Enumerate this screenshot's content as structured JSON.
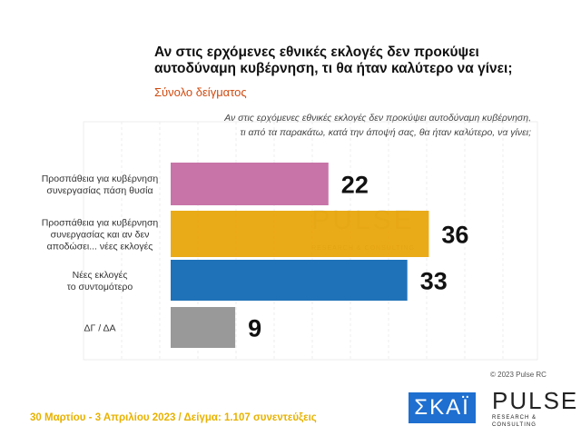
{
  "header": {
    "title_line1": "Αν στις ερχόμενες εθνικές εκλογές δεν προκύψει",
    "title_line2": "αυτοδύναμη κυβέρνηση, τι θα ήταν καλύτερο να γίνει;",
    "subtitle": "Σύνολο δείγματος"
  },
  "chart_data": {
    "type": "bar",
    "orientation": "horizontal",
    "question_line1": "Αν στις ερχόμενες εθνικές εκλογές δεν προκύψει αυτοδύναμη κυβέρνηση,",
    "question_line2": "τι από τα παρακάτω, κατά την άποψή σας, θα ήταν καλύτερο, να γίνει;",
    "categories": [
      [
        "Προσπάθεια για κυβέρνηση",
        "συνεργασίας πάση θυσία"
      ],
      [
        "Προσπάθεια για κυβέρνηση",
        "συνεργασίας και αν δεν",
        "αποδώσει... νέες εκλογές"
      ],
      [
        "Νέες εκλογές",
        "το συντομότερο"
      ],
      [
        "ΔΓ / ΔΑ"
      ]
    ],
    "values": [
      22,
      36,
      33,
      9
    ],
    "colors": [
      "#c874a8",
      "#e8a200",
      "#1f72b8",
      "#999999"
    ],
    "xlim": [
      0,
      50
    ],
    "grid": true
  },
  "watermark": {
    "text": "PULSE",
    "sub": "RESEARCH & CONSULTING"
  },
  "footer": {
    "text": "30 Μαρτίου - 3  Απριλίου  2023  /  Δείγμα:  1.107 συνεντεύξεις",
    "copyright": "© 2023 Pulse RC",
    "logo_skai": "ΣΚΑΪ",
    "logo_pulse": "PULSE",
    "logo_pulse_sub": "RESEARCH & CONSULTING"
  }
}
